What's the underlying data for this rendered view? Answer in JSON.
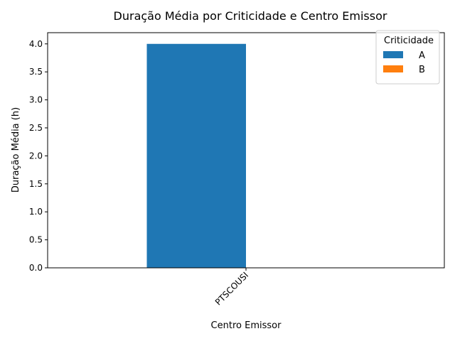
{
  "chart_data": {
    "type": "bar",
    "title": "Duração Média por Criticidade e Centro Emissor",
    "xlabel": "Centro Emissor",
    "ylabel": "Duração Média (h)",
    "categories": [
      "PTSCOUSI"
    ],
    "series": [
      {
        "name": "A",
        "values": [
          4.0
        ],
        "color": "#1f77b4"
      },
      {
        "name": "B",
        "values": [
          0.0
        ],
        "color": "#ff7f0e"
      }
    ],
    "ylim": [
      0,
      4.2
    ],
    "yticks": [
      0.0,
      0.5,
      1.0,
      1.5,
      2.0,
      2.5,
      3.0,
      3.5,
      4.0
    ],
    "ytick_labels": [
      "0.0",
      "0.5",
      "1.0",
      "1.5",
      "2.0",
      "2.5",
      "3.0",
      "3.5",
      "4.0"
    ],
    "legend": {
      "title": "Criticidade",
      "placement": "top-right"
    },
    "grid": false
  }
}
